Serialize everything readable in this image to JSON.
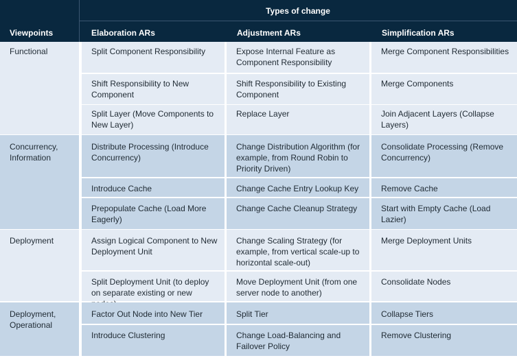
{
  "header": {
    "types_of_change": "Types of change",
    "columns": [
      "Viewpoints",
      "Elaboration ARs",
      "Adjustment ARs",
      "Simplification ARs"
    ]
  },
  "groups": [
    {
      "viewpoint": "Functional",
      "rows": [
        [
          "Split Component Responsibility",
          "Expose Internal Feature as Component Responsibility",
          "Merge Component Responsibilities"
        ],
        [
          "Shift Responsibility to New Component",
          "Shift Responsibility to Existing Component",
          "Merge Components"
        ],
        [
          "Split Layer (Move Components to New Layer)",
          "Replace Layer",
          "Join Adjacent Layers (Collapse Layers)"
        ]
      ]
    },
    {
      "viewpoint": "Concurrency, Information",
      "rows": [
        [
          "Distribute Processing (Introduce Concurrency)",
          "Change Distribution Algorithm (for example, from Round Robin to Priority Driven)",
          "Consolidate Processing (Remove Concurrency)"
        ],
        [
          "Introduce Cache",
          "Change Cache Entry Lookup Key",
          "Remove Cache"
        ],
        [
          "Prepopulate Cache (Load More Eagerly)",
          "Change Cache Cleanup Strategy",
          "Start with Empty Cache (Load Lazier)"
        ]
      ]
    },
    {
      "viewpoint": "Deployment",
      "rows": [
        [
          "Assign Logical Component to New Deployment Unit",
          "Change Scaling Strategy (for example, from vertical scale-up to horizontal scale-out)",
          "Merge Deployment Units"
        ],
        [
          "Split Deployment Unit (to deploy on separate existing or new nodes)",
          "Move Deployment Unit (from one server node to another)",
          "Consolidate Nodes"
        ]
      ]
    },
    {
      "viewpoint": "Deployment, Operational",
      "rows": [
        [
          "Factor Out Node into New Tier",
          "Split Tier",
          "Collapse Tiers"
        ],
        [
          "Introduce Clustering",
          "Change Load-Balancing and Failover Policy",
          "Remove Clustering"
        ]
      ]
    }
  ]
}
